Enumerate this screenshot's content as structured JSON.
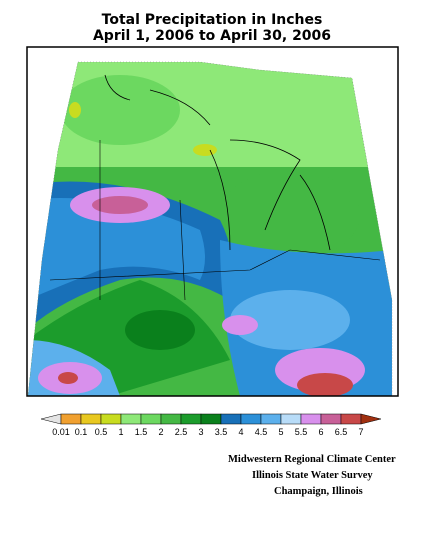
{
  "header": {
    "title_lines": [
      "Total Precipitation in Inches",
      "April 1, 2006 to April 30, 2006"
    ]
  },
  "legend": {
    "labels": [
      0.01,
      0.1,
      0.5,
      1,
      1.5,
      2,
      2.5,
      3,
      3.5,
      4,
      4.5,
      5,
      5.5,
      6,
      6.5,
      7
    ],
    "colors": [
      "#e4e4e4",
      "#f0a030",
      "#e8c820",
      "#c8dc20",
      "#8ee878",
      "#6cd860",
      "#44b844",
      "#1c9c2c",
      "#0a801c",
      "#1870b8",
      "#2c90d8",
      "#5cb0ec",
      "#b8dcf8",
      "#d890ec",
      "#c86098",
      "#c84848",
      "#a03010"
    ]
  },
  "credits": [
    "Midwestern Regional Climate Center",
    "Illinois State Water Survey",
    "Champaign, Illinois"
  ]
}
